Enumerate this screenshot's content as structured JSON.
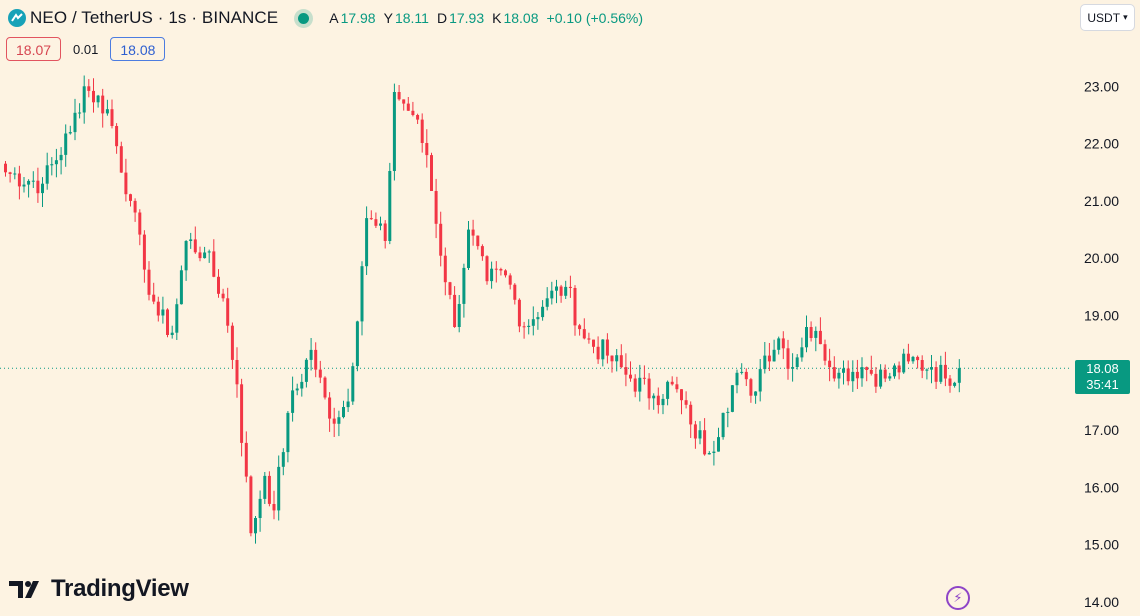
{
  "header": {
    "symbol_title": "NEO / TetherUS · 1s · BINANCE",
    "ohlc": [
      {
        "key": "A",
        "value": "17.98"
      },
      {
        "key": "Y",
        "value": "18.11"
      },
      {
        "key": "D",
        "value": "17.93"
      },
      {
        "key": "K",
        "value": "18.08"
      }
    ],
    "change": "+0.10 (+0.56%)",
    "sell_price": "18.07",
    "spread": "0.01",
    "buy_price": "18.08",
    "currency": "USDT"
  },
  "last_price": {
    "price": "18.08",
    "countdown": "35:41"
  },
  "brand": {
    "name": "TradingView"
  },
  "icons": {
    "logo": "tradingview-logo-icon",
    "status": "market-open-dot-icon",
    "bolt": "lightning-icon"
  },
  "colors": {
    "up": "#089981",
    "down": "#f23645",
    "background": "#fdf3e2",
    "accent": "#8e44c7"
  },
  "chart_data": {
    "type": "candlestick",
    "symbol": "NEO / TetherUS",
    "interval": "1s",
    "exchange": "BINANCE",
    "y_axis_ticks": [
      "23.00",
      "22.00",
      "21.00",
      "20.00",
      "19.00",
      "18.00",
      "17.00",
      "16.00",
      "15.00",
      "14.00"
    ],
    "ylim": [
      14.0,
      23.0
    ],
    "last_price": 18.08,
    "keypoints": [
      [
        0,
        21.5
      ],
      [
        8,
        21.3
      ],
      [
        14,
        22.2
      ],
      [
        17,
        23.0
      ],
      [
        22,
        22.6
      ],
      [
        27,
        21.0
      ],
      [
        30,
        19.8
      ],
      [
        33,
        19.0
      ],
      [
        36,
        18.7
      ],
      [
        39,
        20.3
      ],
      [
        43,
        20.1
      ],
      [
        47,
        19.3
      ],
      [
        50,
        17.8
      ],
      [
        53,
        15.2
      ],
      [
        56,
        16.2
      ],
      [
        58,
        15.6
      ],
      [
        61,
        17.3
      ],
      [
        66,
        18.4
      ],
      [
        70,
        17.2
      ],
      [
        74,
        17.5
      ],
      [
        78,
        20.7
      ],
      [
        82,
        20.3
      ],
      [
        84,
        22.9
      ],
      [
        88,
        22.5
      ],
      [
        91,
        21.8
      ],
      [
        93,
        20.6
      ],
      [
        97,
        18.8
      ],
      [
        100,
        20.5
      ],
      [
        104,
        19.6
      ],
      [
        108,
        19.7
      ],
      [
        112,
        18.8
      ],
      [
        117,
        19.3
      ],
      [
        121,
        19.5
      ],
      [
        125,
        18.6
      ],
      [
        130,
        18.3
      ],
      [
        135,
        17.9
      ],
      [
        140,
        17.6
      ],
      [
        144,
        17.8
      ],
      [
        148,
        17.1
      ],
      [
        152,
        16.6
      ],
      [
        155,
        17.3
      ],
      [
        158,
        18.0
      ],
      [
        161,
        17.6
      ],
      [
        164,
        18.3
      ],
      [
        167,
        18.6
      ],
      [
        170,
        18.1
      ],
      [
        173,
        18.8
      ],
      [
        176,
        18.5
      ],
      [
        180,
        18.0
      ],
      [
        185,
        18.1
      ],
      [
        190,
        17.9
      ],
      [
        195,
        18.2
      ],
      [
        200,
        18.1
      ],
      [
        203,
        17.9
      ],
      [
        206,
        18.08
      ]
    ]
  }
}
